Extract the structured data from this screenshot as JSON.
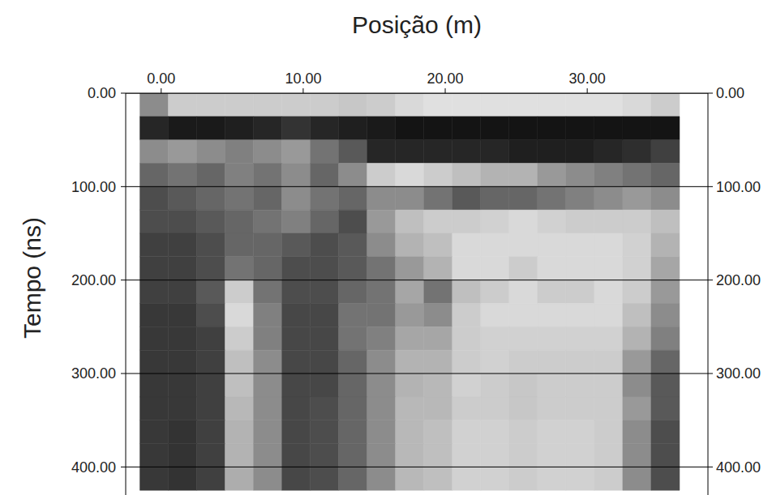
{
  "chart_data": {
    "type": "heatmap",
    "x_label": "Posição (m)",
    "y_label": "Tempo (ns)",
    "xlim": [
      -2.5,
      38.5
    ],
    "ylim": [
      0,
      430
    ],
    "xticks": [
      {
        "value": 0,
        "label": "0.00"
      },
      {
        "value": 10,
        "label": "10.00"
      },
      {
        "value": 20,
        "label": "20.00"
      },
      {
        "value": 30,
        "label": "30.00"
      }
    ],
    "yticks": [
      {
        "value": 0,
        "label": "0.00"
      },
      {
        "value": 100,
        "label": "100.00"
      },
      {
        "value": 200,
        "label": "200.00"
      },
      {
        "value": 300,
        "label": "300.00"
      },
      {
        "value": 400,
        "label": "400.00"
      }
    ],
    "grid": true,
    "zlim": [
      0,
      100
    ],
    "x_edges": [
      -1.5,
      0.5,
      2.5,
      4.5,
      6.5,
      8.5,
      10.5,
      12.5,
      14.5,
      16.5,
      18.5,
      20.5,
      22.5,
      24.5,
      26.5,
      28.5,
      30.5,
      32.5,
      34.5,
      36.5
    ],
    "y_edges": [
      0,
      25,
      50,
      75,
      100,
      125,
      150,
      175,
      200,
      225,
      250,
      275,
      300,
      325,
      350,
      375,
      400,
      425
    ],
    "cells": [
      [
        55,
        80,
        80,
        80,
        80,
        80,
        80,
        78,
        80,
        85,
        88,
        88,
        88,
        88,
        88,
        88,
        88,
        85,
        80
      ],
      [
        15,
        10,
        10,
        12,
        15,
        20,
        15,
        12,
        10,
        8,
        8,
        8,
        8,
        8,
        8,
        8,
        8,
        8,
        8
      ],
      [
        55,
        60,
        55,
        50,
        55,
        60,
        45,
        35,
        15,
        15,
        15,
        15,
        15,
        12,
        12,
        12,
        15,
        18,
        25
      ],
      [
        40,
        45,
        40,
        50,
        45,
        55,
        40,
        55,
        80,
        85,
        80,
        75,
        70,
        70,
        60,
        55,
        50,
        45,
        40
      ],
      [
        30,
        35,
        40,
        45,
        40,
        55,
        45,
        40,
        55,
        55,
        45,
        35,
        40,
        40,
        45,
        50,
        55,
        60,
        55
      ],
      [
        30,
        30,
        35,
        40,
        45,
        50,
        40,
        30,
        60,
        75,
        80,
        80,
        82,
        85,
        82,
        80,
        80,
        80,
        75
      ],
      [
        25,
        25,
        30,
        40,
        40,
        35,
        30,
        35,
        55,
        70,
        75,
        85,
        85,
        85,
        85,
        85,
        85,
        82,
        70
      ],
      [
        25,
        25,
        30,
        45,
        40,
        30,
        30,
        35,
        45,
        60,
        70,
        85,
        85,
        80,
        85,
        85,
        85,
        82,
        65
      ],
      [
        25,
        25,
        35,
        80,
        45,
        30,
        30,
        40,
        45,
        65,
        45,
        75,
        80,
        85,
        80,
        80,
        85,
        80,
        60
      ],
      [
        22,
        22,
        30,
        85,
        50,
        28,
        28,
        45,
        45,
        60,
        55,
        80,
        85,
        85,
        85,
        85,
        85,
        75,
        55
      ],
      [
        22,
        22,
        25,
        80,
        50,
        28,
        28,
        45,
        50,
        65,
        65,
        80,
        82,
        82,
        82,
        82,
        82,
        70,
        50
      ],
      [
        22,
        22,
        25,
        75,
        55,
        28,
        28,
        40,
        55,
        70,
        70,
        80,
        82,
        80,
        80,
        80,
        80,
        60,
        40
      ],
      [
        22,
        22,
        25,
        75,
        55,
        28,
        28,
        40,
        55,
        70,
        72,
        82,
        80,
        78,
        80,
        80,
        80,
        55,
        35
      ],
      [
        22,
        22,
        25,
        72,
        55,
        28,
        30,
        40,
        55,
        72,
        72,
        80,
        80,
        78,
        80,
        80,
        80,
        60,
        35
      ],
      [
        22,
        20,
        25,
        70,
        55,
        28,
        30,
        40,
        55,
        72,
        75,
        82,
        82,
        80,
        82,
        82,
        80,
        55,
        30
      ],
      [
        22,
        20,
        25,
        70,
        55,
        28,
        30,
        40,
        55,
        72,
        75,
        82,
        82,
        80,
        82,
        82,
        80,
        55,
        30
      ],
      [
        22,
        20,
        25,
        68,
        55,
        28,
        30,
        40,
        55,
        72,
        75,
        82,
        82,
        80,
        82,
        82,
        80,
        55,
        30
      ]
    ]
  }
}
